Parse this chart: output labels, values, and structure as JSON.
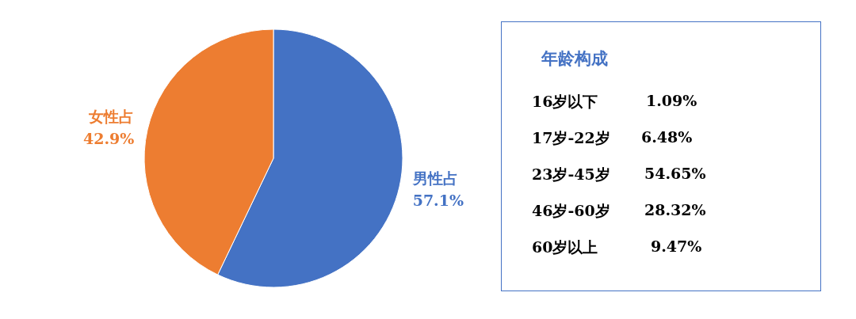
{
  "chart_data": [
    {
      "type": "pie",
      "categories": [
        "男性占",
        "女性占"
      ],
      "values": [
        57.1,
        42.9
      ],
      "colors": [
        "#4472c4",
        "#ed7d31"
      ],
      "value_labels": [
        "57.1%",
        "42.9%"
      ]
    },
    {
      "type": "other",
      "title": "年龄构成",
      "annotations": [
        "16岁以下",
        "1.09%",
        "17岁-22岁",
        "6.48%",
        "23岁-45岁",
        "54.65%",
        "46岁-60岁",
        "28.32%",
        "60岁以上",
        "9.47%"
      ]
    }
  ]
}
